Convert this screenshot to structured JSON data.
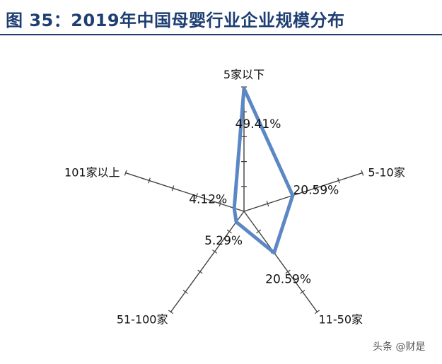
{
  "title": "图 35：2019年中国母婴行业企业规模分布",
  "watermark": "头条 @财是",
  "colors": {
    "series": "#5b87c4",
    "axis": "#404040",
    "title": "#1f3f73"
  },
  "chart_data": {
    "type": "radar",
    "title": "图 35：2019年中国母婴行业企业规模分布",
    "categories": [
      "5家以下",
      "5-10家",
      "11-50家",
      "51-100家",
      "101家以上"
    ],
    "series": [
      {
        "values": [
          49.41,
          20.59,
          20.59,
          5.29,
          4.12
        ]
      }
    ],
    "value_labels": [
      "49.41%",
      "20.59%",
      "20.59%",
      "5.29%",
      "4.12%"
    ],
    "range": [
      0,
      50
    ],
    "legend": "none"
  }
}
